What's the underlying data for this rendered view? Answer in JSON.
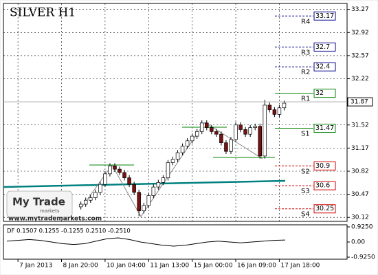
{
  "chart_data": {
    "type": "candlestick",
    "title": "SILVER H1",
    "candles": {
      "open": [
        30.28,
        30.32,
        30.38,
        30.42,
        30.5,
        30.62,
        30.78,
        30.9,
        30.85,
        30.8,
        30.72,
        30.62,
        30.5,
        30.22,
        30.3,
        30.45,
        30.58,
        30.65,
        30.72,
        30.95,
        31.0,
        31.1,
        31.2,
        31.28,
        31.35,
        31.42,
        31.55,
        31.48,
        31.42,
        31.38,
        31.25,
        31.12,
        31.3,
        31.52,
        31.45,
        31.38,
        31.48,
        31.5,
        31.05,
        31.82,
        31.75,
        31.68,
        31.78
      ],
      "high": [
        30.36,
        30.42,
        30.46,
        30.54,
        30.66,
        30.82,
        30.94,
        30.94,
        30.89,
        30.84,
        30.76,
        30.66,
        30.54,
        30.34,
        30.49,
        30.62,
        30.69,
        30.76,
        30.99,
        31.04,
        31.14,
        31.24,
        31.32,
        31.39,
        31.46,
        31.59,
        31.59,
        31.52,
        31.46,
        31.42,
        31.29,
        31.34,
        31.56,
        31.56,
        31.49,
        31.52,
        31.54,
        31.54,
        31.9,
        31.86,
        31.79,
        31.82,
        31.89
      ],
      "low": [
        30.24,
        30.28,
        30.34,
        30.38,
        30.46,
        30.58,
        30.74,
        30.81,
        30.76,
        30.68,
        30.58,
        30.46,
        30.14,
        30.18,
        30.26,
        30.41,
        30.54,
        30.61,
        30.68,
        30.91,
        30.96,
        31.06,
        31.16,
        31.24,
        31.31,
        31.38,
        31.44,
        31.38,
        31.34,
        31.21,
        31.08,
        31.08,
        31.26,
        31.41,
        31.34,
        31.34,
        31.44,
        31.01,
        31.01,
        31.71,
        31.64,
        31.64,
        31.74
      ],
      "close": [
        30.32,
        30.38,
        30.42,
        30.5,
        30.62,
        30.78,
        30.9,
        30.85,
        30.8,
        30.72,
        30.62,
        30.5,
        30.22,
        30.3,
        30.45,
        30.58,
        30.65,
        30.72,
        30.95,
        31.0,
        31.1,
        31.2,
        31.28,
        31.35,
        31.42,
        31.55,
        31.48,
        31.42,
        31.38,
        31.25,
        31.12,
        31.3,
        31.52,
        31.45,
        31.38,
        31.48,
        31.5,
        31.05,
        31.82,
        31.75,
        31.68,
        31.78,
        31.85
      ]
    },
    "bull_color": "#ffffff",
    "bear_color": "#7a1010",
    "xlim": [
      -16,
      55
    ],
    "xticks": [
      {
        "value": -13,
        "label": "7 Jan 2013"
      },
      {
        "value": -4,
        "label": "8 Jan 20:00"
      },
      {
        "value": 5,
        "label": "10 Jan 04:00"
      },
      {
        "value": 14,
        "label": "11 Jan 13:00"
      },
      {
        "value": 23,
        "label": "15 Jan 00:00"
      },
      {
        "value": 32,
        "label": "16 Jan 09:00"
      },
      {
        "value": 41,
        "label": "17 Jan 18:00"
      }
    ],
    "ylim": [
      30.06,
      33.36
    ],
    "yticks": [
      33.27,
      32.92,
      32.57,
      32.22,
      31.52,
      31.17,
      30.82,
      30.47,
      30.12
    ],
    "grid": true,
    "last_price": 31.87,
    "levels": [
      {
        "name": "R4",
        "value": 33.17,
        "color": "#00008b",
        "dashed": true
      },
      {
        "name": "R3",
        "value": 32.7,
        "color": "#00008b",
        "dashed": true
      },
      {
        "name": "R2",
        "value": 32.4,
        "color": "#00008b",
        "dashed": true
      },
      {
        "name": "R1",
        "value": 32.0,
        "color": "#008000",
        "dashed": false
      },
      {
        "name": "S1",
        "value": 31.47,
        "color": "#008000",
        "dashed": false
      },
      {
        "name": "S2",
        "value": 30.9,
        "color": "#cc0000",
        "dashed": true
      },
      {
        "name": "S3",
        "value": 30.6,
        "color": "#cc0000",
        "dashed": true
      },
      {
        "name": "S4",
        "value": 30.25,
        "color": "#cc0000",
        "dashed": true
      }
    ],
    "indicator": {
      "label": "DF 0.1507 0.1255 -0.1255 0.2510 -0.2510",
      "values": [
        0.05,
        0.1,
        0.15,
        0.1,
        0,
        -0.1,
        -0.15,
        -0.1,
        0.05,
        0.2,
        0.25,
        0.15,
        0,
        -0.1,
        -0.2,
        -0.25,
        -0.2,
        -0.1,
        0,
        0.05,
        0,
        -0.05,
        0,
        0.05,
        0.1,
        0.12
      ],
      "color": "#000000",
      "ylim": [
        -1.05,
        1.05
      ],
      "yticks": [
        {
          "value": 0.925,
          "label": "0.9250"
        },
        {
          "value": 0,
          "label": "0.00"
        },
        {
          "value": -0.925,
          "label": "-0.9250"
        }
      ]
    },
    "logo": {
      "name": "My Trade",
      "sub": "markets",
      "url": "www.mytrademarkets.com"
    }
  }
}
